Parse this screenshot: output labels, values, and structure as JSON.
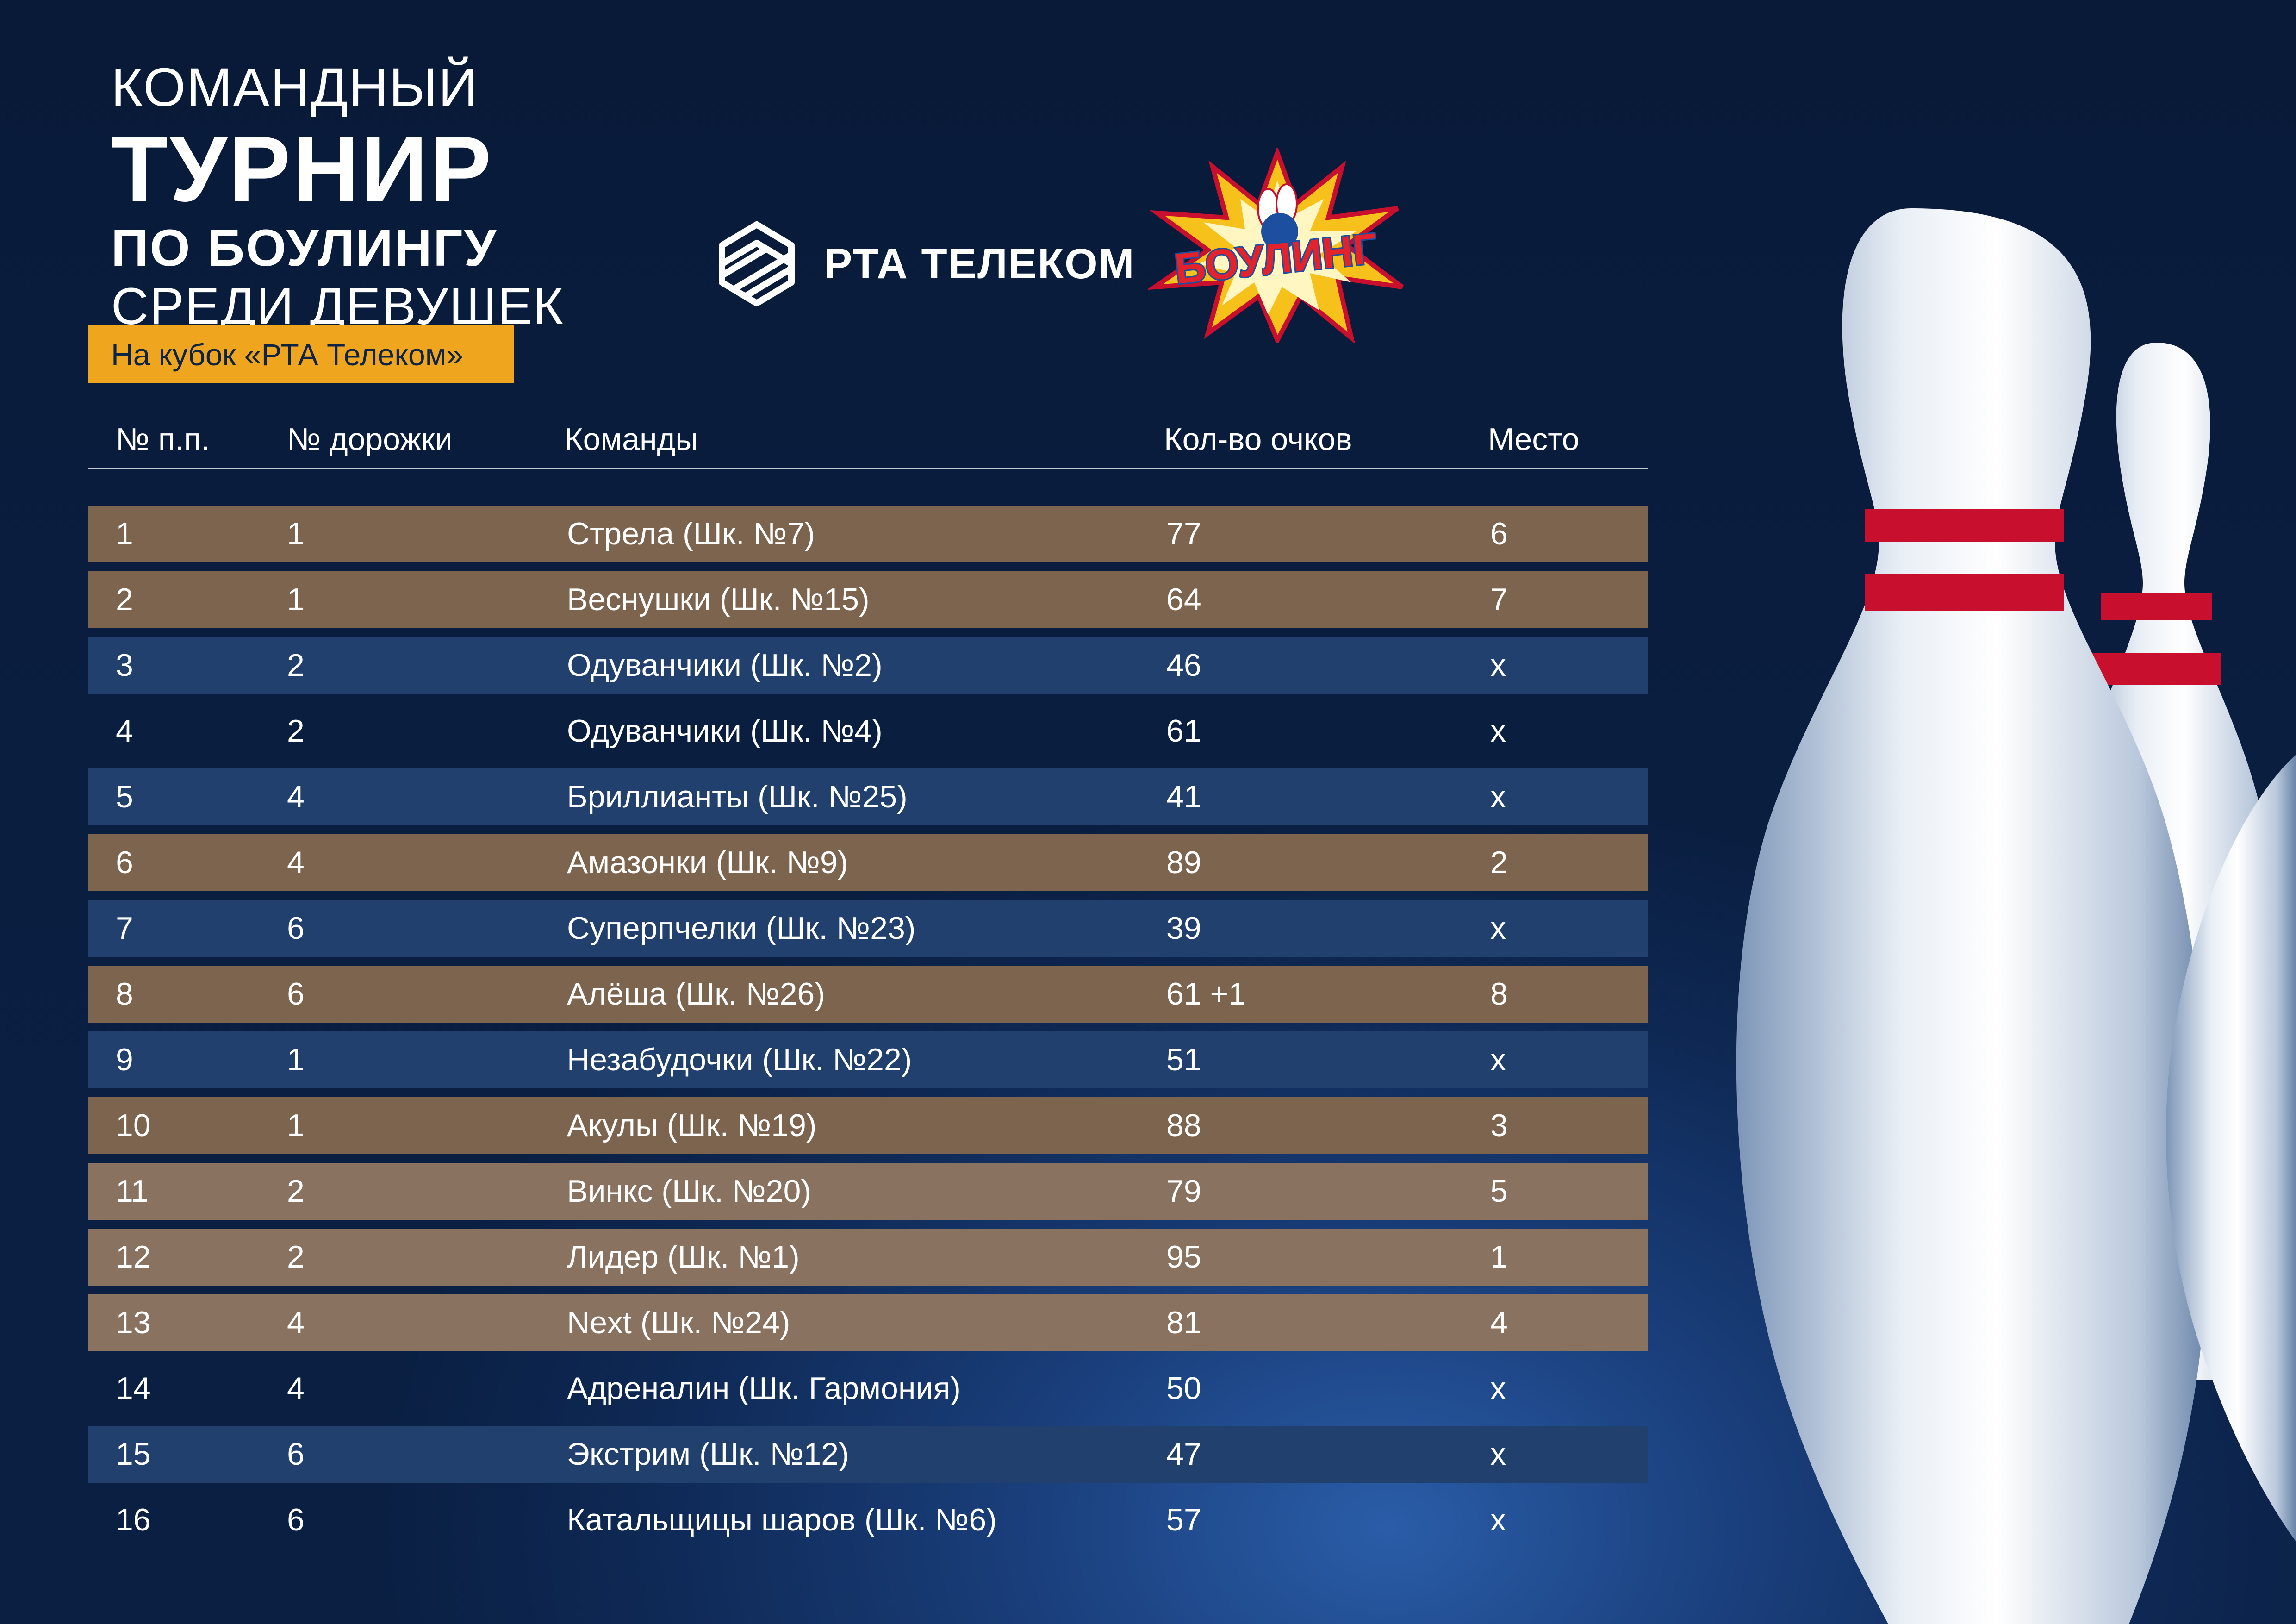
{
  "title": {
    "line1": "Командный",
    "line2": "Турнир",
    "line3": "по боулингу",
    "line4": "среди девушек",
    "cup": "На кубок «РТА Телеком»"
  },
  "logos": {
    "rta_text": "РТА ТЕЛЕКОМ",
    "bowling_text": "БОУЛИНГ"
  },
  "table": {
    "headers": {
      "num": "№ п.п.",
      "lane": "№ дорожки",
      "team": "Команды",
      "points": "Кол-во очков",
      "place": "Место"
    },
    "rows": [
      {
        "num": "1",
        "lane": "1",
        "team": "Стрела (Шк. №7)",
        "points": "77",
        "place": "6"
      },
      {
        "num": "2",
        "lane": "1",
        "team": "Веснушки (Шк. №15)",
        "points": "64",
        "place": "7"
      },
      {
        "num": "3",
        "lane": "2",
        "team": "Одуванчики (Шк. №2)",
        "points": "46",
        "place": "х"
      },
      {
        "num": "4",
        "lane": "2",
        "team": "Одуванчики (Шк. №4)",
        "points": "61",
        "place": "х"
      },
      {
        "num": "5",
        "lane": "4",
        "team": "Бриллианты (Шк. №25)",
        "points": "41",
        "place": "х"
      },
      {
        "num": "6",
        "lane": "4",
        "team": "Амазонки (Шк. №9)",
        "points": "89",
        "place": "2"
      },
      {
        "num": "7",
        "lane": "6",
        "team": "Суперпчелки (Шк. №23)",
        "points": "39",
        "place": "х"
      },
      {
        "num": "8",
        "lane": "6",
        "team": "Алёша (Шк. №26)",
        "points": "61 +1",
        "place": "8"
      },
      {
        "num": "9",
        "lane": "1",
        "team": "Незабудочки (Шк. №22)",
        "points": "51",
        "place": "х"
      },
      {
        "num": "10",
        "lane": "1",
        "team": "Акулы (Шк. №19)",
        "points": "88",
        "place": "3"
      },
      {
        "num": "11",
        "lane": "2",
        "team": "Винкс (Шк. №20)",
        "points": "79",
        "place": "5"
      },
      {
        "num": "12",
        "lane": "2",
        "team": "Лидер (Шк. №1)",
        "points": "95",
        "place": "1"
      },
      {
        "num": "13",
        "lane": "4",
        "team": "Next (Шк. №24)",
        "points": "81",
        "place": "4"
      },
      {
        "num": "14",
        "lane": "4",
        "team": "Адреналин (Шк. Гармония)",
        "points": "50",
        "place": "х"
      },
      {
        "num": "15",
        "lane": "6",
        "team": "Экстрим (Шк. №12)",
        "points": "47",
        "place": "х"
      },
      {
        "num": "16",
        "lane": "6",
        "team": "Катальщицы шаров (Шк. №6)",
        "points": "57",
        "place": "х"
      }
    ]
  },
  "colors": {
    "background": "#12305f",
    "accent": "#f0a51f",
    "row_brown": "#7d644f",
    "row_blue": "#21406e",
    "pin_stripe": "#c8102e"
  },
  "icons": [
    "rta-telecom-logo-icon",
    "bowling-logo-icon",
    "bowling-pins-illustration"
  ]
}
